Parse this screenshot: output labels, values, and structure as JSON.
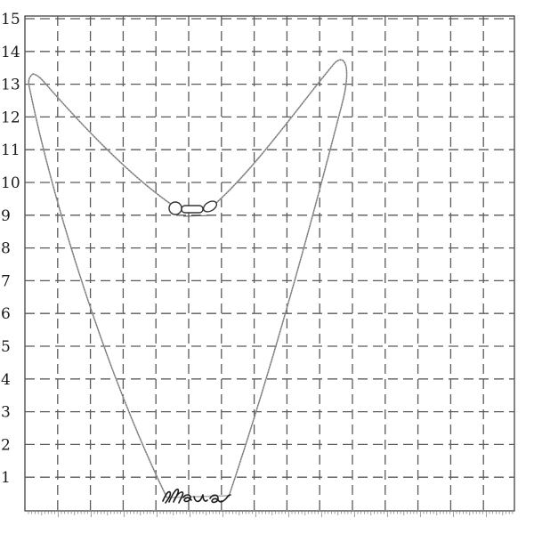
{
  "photo": {
    "subject": "necklace",
    "pendant_text": "Мама",
    "scale_unit": "cm",
    "scale_labels": [
      "15",
      "14",
      "13",
      "12",
      "11",
      "10",
      "9",
      "8",
      "7",
      "6",
      "5",
      "4",
      "3",
      "2",
      "1"
    ],
    "colors": {
      "background": "#ffffff",
      "grid": "#5a5a5a",
      "chain": "#9a9a9a",
      "pendant": "#1c1c1c"
    },
    "icons": [
      "grid-ruler",
      "chain-clasp",
      "script-pendant"
    ]
  }
}
